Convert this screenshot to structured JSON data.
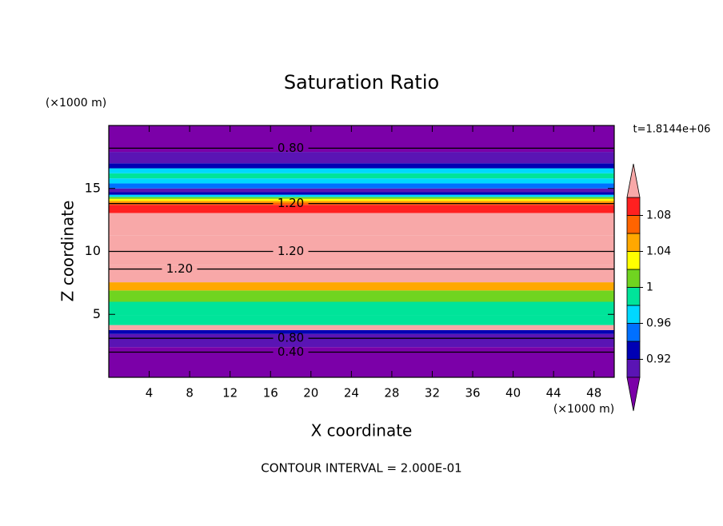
{
  "chart_data": {
    "type": "contour",
    "title": "Saturation Ratio",
    "x_label": "X coordinate",
    "y_label": "Z coordinate",
    "x_unit": "(×1000 m)",
    "y_unit": "(×1000 m)",
    "time_label": "t=1.8144e+06",
    "footer": "CONTOUR INTERVAL = 2.000E-01",
    "xlim": [
      0,
      50
    ],
    "ylim": [
      0,
      20
    ],
    "xticks": [
      4,
      8,
      12,
      16,
      20,
      24,
      28,
      32,
      36,
      40,
      44,
      48
    ],
    "yticks": [
      5,
      10,
      15
    ],
    "profile": {
      "z": [
        1.5,
        3.3,
        3.6,
        3.9,
        4.4,
        5.5,
        6.5,
        7.3,
        7.8,
        10,
        12.5,
        13.6,
        13.8,
        13.95,
        14.1,
        14.25,
        14.4,
        14.6,
        14.8,
        15.2,
        15.6,
        16.0,
        16.4,
        16.8,
        17.2,
        18.6
      ],
      "values": [
        0.8,
        0.91,
        0.93,
        1.12,
        0.99,
        0.99,
        1.01,
        1.05,
        1.12,
        1.2,
        1.15,
        1.09,
        1.07,
        1.05,
        1.03,
        1.01,
        0.97,
        0.93,
        0.91,
        0.95,
        0.97,
        0.99,
        0.97,
        0.93,
        0.91,
        0.8
      ]
    },
    "levels": [
      0.9,
      0.92,
      0.94,
      0.96,
      0.98,
      1,
      1.02,
      1.04,
      1.06,
      1.08,
      1.1
    ],
    "colors": [
      "#7b00a8",
      "#5a14b4",
      "#0000b4",
      "#0070ff",
      "#00d8ff",
      "#00e49a",
      "#70d420",
      "#ffff00",
      "#ffa800",
      "#ff6400",
      "#ff2020",
      "#f8a8a8"
    ],
    "colorbar_ticks": [
      0.92,
      0.96,
      1,
      1.04,
      1.08
    ],
    "contour_lines": [
      {
        "level": 0.8,
        "label": "0.80",
        "z": 18.2,
        "label_x": 18
      },
      {
        "level": 1.2,
        "label": "1.20",
        "z": 13.8,
        "label_x": 18
      },
      {
        "level": 1.2,
        "label": "1.20",
        "z": 10,
        "label_x": 18
      },
      {
        "level": 1.2,
        "label": "1.20",
        "z": 8.6,
        "label_x": 7
      },
      {
        "level": 0.8,
        "label": "0.80",
        "z": 3.1,
        "label_x": 18
      },
      {
        "level": 0.4,
        "label": "0.40",
        "z": 2.0,
        "label_x": 18
      }
    ]
  }
}
